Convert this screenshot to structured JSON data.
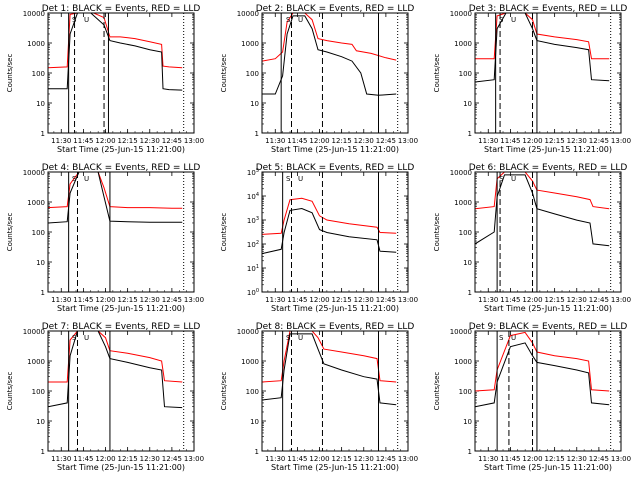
{
  "chart_data": [
    {
      "type": "line",
      "title": "Det 1: BLACK = Events, RED = LLD",
      "xlabel": "Start Time (25-Jun-15 11:21:00)",
      "ylabel": "Counts/sec",
      "x_ticks": [
        "11:30",
        "11:45",
        "12:00",
        "12:15",
        "12:30",
        "12:45",
        "13:00"
      ],
      "y_ticks": [
        "1",
        "10",
        "100",
        "1000",
        "10000"
      ],
      "ylog": true,
      "ylim": [
        1,
        10000
      ],
      "xlim": [
        "11:21",
        "13:00"
      ],
      "vlines_solid": [
        "11:35",
        "12:02"
      ],
      "vlines_dashed": [
        "11:39",
        "11:59"
      ],
      "vlines_dotted": [
        "12:53"
      ],
      "markers": [
        "S",
        "U"
      ],
      "series": [
        {
          "color": "#ff0000",
          "x": [
            "11:21",
            "11:34",
            "11:36",
            "11:41",
            "11:45",
            "11:52",
            "11:59",
            "12:03",
            "12:10",
            "12:20",
            "12:30",
            "12:38",
            "12:39",
            "12:43",
            "12:52"
          ],
          "y": [
            150,
            160,
            9000,
            10000,
            10000,
            10000,
            7000,
            1600,
            1600,
            1400,
            1100,
            900,
            170,
            160,
            150
          ]
        },
        {
          "color": "#000000",
          "x": [
            "11:21",
            "11:34",
            "11:36",
            "11:41",
            "11:50",
            "11:59",
            "12:03",
            "12:10",
            "12:20",
            "12:30",
            "12:38",
            "12:39",
            "12:43",
            "12:52"
          ],
          "y": [
            30,
            30,
            2000,
            10000,
            10000,
            4000,
            1200,
            1000,
            800,
            600,
            500,
            30,
            28,
            27
          ]
        }
      ]
    },
    {
      "type": "line",
      "title": "Det 2: BLACK = Events, RED = LLD",
      "xlabel": "Start Time (25-Jun-15 11:21:00)",
      "ylabel": "Counts/sec",
      "x_ticks": [
        "11:30",
        "11:45",
        "12:00",
        "12:15",
        "12:30",
        "12:45",
        "13:00"
      ],
      "y_ticks": [
        "1",
        "10",
        "100",
        "1000",
        "10000"
      ],
      "ylog": true,
      "ylim": [
        1,
        10000
      ],
      "xlim": [
        "11:21",
        "13:00"
      ],
      "vlines_solid": [
        "11:34",
        "12:40"
      ],
      "vlines_dashed": [
        "11:41",
        "12:02"
      ],
      "vlines_dotted": [
        "12:53"
      ],
      "markers": [
        "S",
        "U"
      ],
      "series": [
        {
          "color": "#ff0000",
          "x": [
            "11:21",
            "11:30",
            "11:35",
            "11:38",
            "11:42",
            "11:50",
            "11:55",
            "11:59",
            "12:05",
            "12:15",
            "12:22",
            "12:25",
            "12:35",
            "12:45",
            "12:52"
          ],
          "y": [
            250,
            300,
            500,
            5000,
            12000,
            12000,
            6000,
            1400,
            1200,
            1000,
            900,
            550,
            450,
            320,
            270
          ]
        },
        {
          "color": "#000000",
          "x": [
            "11:21",
            "11:30",
            "11:35",
            "11:38",
            "11:42",
            "11:50",
            "11:55",
            "11:59",
            "12:05",
            "12:15",
            "12:22",
            "12:28",
            "12:32",
            "12:40",
            "12:52"
          ],
          "y": [
            20,
            20,
            80,
            2000,
            8000,
            8000,
            3000,
            600,
            500,
            350,
            250,
            100,
            20,
            18,
            20
          ]
        }
      ]
    },
    {
      "type": "line",
      "title": "Det 3: BLACK = Events, RED = LLD",
      "xlabel": "Start Time (25-Jun-15 11:21:00)",
      "ylabel": "Counts/sec",
      "x_ticks": [
        "11:30",
        "11:45",
        "12:00",
        "12:15",
        "12:30",
        "12:45",
        "13:00"
      ],
      "y_ticks": [
        "1",
        "10",
        "100",
        "1000",
        "10000"
      ],
      "ylog": true,
      "ylim": [
        1,
        10000
      ],
      "xlim": [
        "11:21",
        "13:00"
      ],
      "vlines_solid": [
        "11:35",
        "12:03"
      ],
      "vlines_dashed": [
        "11:38",
        "12:00"
      ],
      "vlines_dotted": [
        "12:53"
      ],
      "markers": [
        "S",
        "U"
      ],
      "series": [
        {
          "color": "#ff0000",
          "x": [
            "11:21",
            "11:34",
            "11:36",
            "11:42",
            "11:55",
            "12:00",
            "12:03",
            "12:15",
            "12:30",
            "12:38",
            "12:40",
            "12:52"
          ],
          "y": [
            300,
            300,
            8000,
            12000,
            12000,
            6000,
            2000,
            1600,
            1300,
            1100,
            300,
            300
          ]
        },
        {
          "color": "#000000",
          "x": [
            "11:21",
            "11:34",
            "11:36",
            "11:42",
            "11:55",
            "12:00",
            "12:03",
            "12:15",
            "12:30",
            "12:38",
            "12:40",
            "12:52"
          ],
          "y": [
            50,
            60,
            3000,
            10000,
            10000,
            3000,
            1200,
            900,
            700,
            600,
            60,
            55
          ]
        }
      ]
    },
    {
      "type": "line",
      "title": "Det 4: BLACK = Events, RED = LLD",
      "xlabel": "Start Time (25-Jun-15 11:21:00)",
      "ylabel": "Counts/sec",
      "x_ticks": [
        "11:30",
        "11:45",
        "12:00",
        "12:15",
        "12:30",
        "12:45",
        "13:00"
      ],
      "y_ticks": [
        "1",
        "10",
        "100",
        "1000",
        "10000"
      ],
      "ylog": true,
      "ylim": [
        1,
        10000
      ],
      "xlim": [
        "11:21",
        "13:00"
      ],
      "vlines_solid": [
        "11:35",
        "12:03"
      ],
      "vlines_dashed": [
        "11:41"
      ],
      "vlines_dotted": [
        "12:53"
      ],
      "markers": [
        "S",
        "U"
      ],
      "series": [
        {
          "color": "#ff0000",
          "x": [
            "11:21",
            "11:34",
            "11:36",
            "11:42",
            "11:55",
            "11:59",
            "12:03",
            "12:15",
            "12:30",
            "12:45",
            "12:52"
          ],
          "y": [
            650,
            700,
            4000,
            12000,
            12000,
            3000,
            700,
            650,
            650,
            620,
            620
          ]
        },
        {
          "color": "#000000",
          "x": [
            "11:21",
            "11:34",
            "11:36",
            "11:42",
            "11:55",
            "11:59",
            "12:03",
            "12:15",
            "12:30",
            "12:45",
            "12:52"
          ],
          "y": [
            200,
            220,
            2000,
            10000,
            10000,
            1500,
            230,
            220,
            210,
            210,
            210
          ]
        }
      ]
    },
    {
      "type": "line",
      "title": "Det 5: BLACK = Events, RED = LLD",
      "xlabel": "Start Time (25-Jun-15 11:21:00)",
      "ylabel": "Counts/sec",
      "x_ticks": [
        "11:30",
        "11:45",
        "12:00",
        "12:15",
        "12:30",
        "12:45",
        "13:00"
      ],
      "y_ticks": [
        "10^0",
        "10^1",
        "10^2",
        "10^3",
        "10^4",
        "10^5"
      ],
      "ylog": true,
      "ylim": [
        1,
        100000
      ],
      "xlim": [
        "11:21",
        "13:00"
      ],
      "vlines_solid": [
        "11:35",
        "12:40"
      ],
      "vlines_dashed": [
        "11:41",
        "12:02"
      ],
      "vlines_dotted": [
        "12:53"
      ],
      "markers": [
        "S",
        "U"
      ],
      "series": [
        {
          "color": "#ff0000",
          "x": [
            "11:21",
            "11:34",
            "11:36",
            "11:40",
            "11:48",
            "11:55",
            "12:00",
            "12:05",
            "12:20",
            "12:39",
            "12:41",
            "12:52"
          ],
          "y": [
            250,
            280,
            1000,
            7000,
            8000,
            6000,
            1500,
            1000,
            700,
            500,
            300,
            280
          ]
        },
        {
          "color": "#000000",
          "x": [
            "11:21",
            "11:34",
            "11:36",
            "11:40",
            "11:48",
            "11:55",
            "12:00",
            "12:05",
            "12:20",
            "12:39",
            "12:41",
            "12:52"
          ],
          "y": [
            40,
            60,
            300,
            2500,
            3000,
            2000,
            400,
            300,
            200,
            150,
            50,
            45
          ]
        }
      ]
    },
    {
      "type": "line",
      "title": "Det 6: BLACK = Events, RED = LLD",
      "xlabel": "Start Time (25-Jun-15 11:21:00)",
      "ylabel": "Counts/sec",
      "x_ticks": [
        "11:30",
        "11:45",
        "12:00",
        "12:15",
        "12:30",
        "12:45",
        "13:00"
      ],
      "y_ticks": [
        "1",
        "10",
        "100",
        "1000",
        "10000"
      ],
      "ylog": true,
      "ylim": [
        1,
        10000
      ],
      "xlim": [
        "11:21",
        "13:00"
      ],
      "vlines_solid": [
        "11:36",
        "12:03"
      ],
      "vlines_dashed": [
        "11:38",
        "12:00"
      ],
      "vlines_dotted": [
        "12:53"
      ],
      "markers": [
        "S",
        "U"
      ],
      "series": [
        {
          "color": "#ff0000",
          "x": [
            "11:21",
            "11:34",
            "11:36",
            "11:41",
            "11:55",
            "12:00",
            "12:03",
            "12:15",
            "12:30",
            "12:39",
            "12:41",
            "12:52"
          ],
          "y": [
            600,
            700,
            6000,
            12000,
            12000,
            5000,
            2500,
            2000,
            1500,
            1200,
            700,
            600
          ]
        },
        {
          "color": "#000000",
          "x": [
            "11:21",
            "11:34",
            "11:36",
            "11:41",
            "11:55",
            "12:00",
            "12:03",
            "12:15",
            "12:30",
            "12:39",
            "12:41",
            "12:52"
          ],
          "y": [
            40,
            100,
            1500,
            8000,
            8000,
            2000,
            600,
            400,
            250,
            200,
            40,
            35
          ]
        }
      ]
    },
    {
      "type": "line",
      "title": "Det 7: BLACK = Events, RED = LLD",
      "xlabel": "Start Time (25-Jun-15 11:21:00)",
      "ylabel": "Counts/sec",
      "x_ticks": [
        "11:30",
        "11:45",
        "12:00",
        "12:15",
        "12:30",
        "12:45",
        "13:00"
      ],
      "y_ticks": [
        "1",
        "10",
        "100",
        "1000",
        "10000"
      ],
      "ylog": true,
      "ylim": [
        1,
        10000
      ],
      "xlim": [
        "11:21",
        "13:00"
      ],
      "vlines_solid": [
        "11:35",
        "12:03"
      ],
      "vlines_dashed": [
        "11:41"
      ],
      "vlines_dotted": [
        "12:53"
      ],
      "markers": [
        "S",
        "U"
      ],
      "series": [
        {
          "color": "#ff0000",
          "x": [
            "11:21",
            "11:34",
            "11:36",
            "11:41",
            "11:55",
            "12:00",
            "12:03",
            "12:15",
            "12:30",
            "12:38",
            "12:40",
            "12:52"
          ],
          "y": [
            200,
            200,
            5000,
            12000,
            12000,
            6000,
            2200,
            1800,
            1300,
            1000,
            220,
            200
          ]
        },
        {
          "color": "#000000",
          "x": [
            "11:21",
            "11:34",
            "11:36",
            "11:41",
            "11:55",
            "12:00",
            "12:03",
            "12:15",
            "12:30",
            "12:38",
            "12:40",
            "12:52"
          ],
          "y": [
            30,
            40,
            1500,
            10000,
            10000,
            3000,
            1200,
            900,
            600,
            500,
            30,
            28
          ]
        }
      ]
    },
    {
      "type": "line",
      "title": "Det 8: BLACK = Events, RED = LLD",
      "xlabel": "Start Time (25-Jun-15 11:21:00)",
      "ylabel": "Counts/sec",
      "x_ticks": [
        "11:30",
        "11:45",
        "12:00",
        "12:15",
        "12:30",
        "12:45",
        "13:00"
      ],
      "y_ticks": [
        "1",
        "10",
        "100",
        "1000",
        "10000"
      ],
      "ylog": true,
      "ylim": [
        1,
        10000
      ],
      "xlim": [
        "11:21",
        "13:00"
      ],
      "vlines_solid": [
        "11:35",
        "12:40"
      ],
      "vlines_dashed": [
        "11:41",
        "12:02"
      ],
      "vlines_dotted": [
        "12:53"
      ],
      "markers": [
        "S",
        "U"
      ],
      "series": [
        {
          "color": "#ff0000",
          "x": [
            "11:21",
            "11:34",
            "11:36",
            "11:40",
            "11:55",
            "11:59",
            "12:03",
            "12:15",
            "12:30",
            "12:39",
            "12:41",
            "12:52"
          ],
          "y": [
            200,
            220,
            1000,
            12000,
            12000,
            6000,
            2500,
            2000,
            1500,
            1200,
            220,
            200
          ]
        },
        {
          "color": "#000000",
          "x": [
            "11:21",
            "11:34",
            "11:36",
            "11:40",
            "11:55",
            "11:59",
            "12:03",
            "12:15",
            "12:30",
            "12:39",
            "12:41",
            "12:52"
          ],
          "y": [
            50,
            60,
            500,
            8000,
            8000,
            2500,
            800,
            500,
            300,
            250,
            40,
            35
          ]
        }
      ]
    },
    {
      "type": "line",
      "title": "Det 9: BLACK = Events, RED = LLD",
      "xlabel": "Start Time (25-Jun-15 11:21:00)",
      "ylabel": "Counts/sec",
      "x_ticks": [
        "11:30",
        "11:45",
        "12:00",
        "12:15",
        "12:30",
        "12:45",
        "13:00"
      ],
      "y_ticks": [
        "1",
        "10",
        "100",
        "1000",
        "10000"
      ],
      "ylog": true,
      "ylim": [
        1,
        10000
      ],
      "xlim": [
        "11:21",
        "13:00"
      ],
      "vlines_solid": [
        "11:36",
        "12:03"
      ],
      "vlines_dashed": [
        "11:44",
        "12:00"
      ],
      "vlines_dotted": [
        "12:53"
      ],
      "markers": [
        "S",
        "U"
      ],
      "series": [
        {
          "color": "#ff0000",
          "x": [
            "11:21",
            "11:34",
            "11:36",
            "11:45",
            "11:55",
            "12:00",
            "12:03",
            "12:15",
            "12:30",
            "12:38",
            "12:40",
            "12:52"
          ],
          "y": [
            100,
            110,
            500,
            7000,
            9000,
            4000,
            2000,
            1500,
            1200,
            1000,
            110,
            100
          ]
        },
        {
          "color": "#000000",
          "x": [
            "11:21",
            "11:34",
            "11:36",
            "11:45",
            "11:55",
            "12:00",
            "12:03",
            "12:15",
            "12:30",
            "12:38",
            "12:40",
            "12:52"
          ],
          "y": [
            30,
            40,
            200,
            3000,
            4000,
            1500,
            900,
            700,
            500,
            400,
            40,
            35
          ]
        }
      ]
    }
  ]
}
